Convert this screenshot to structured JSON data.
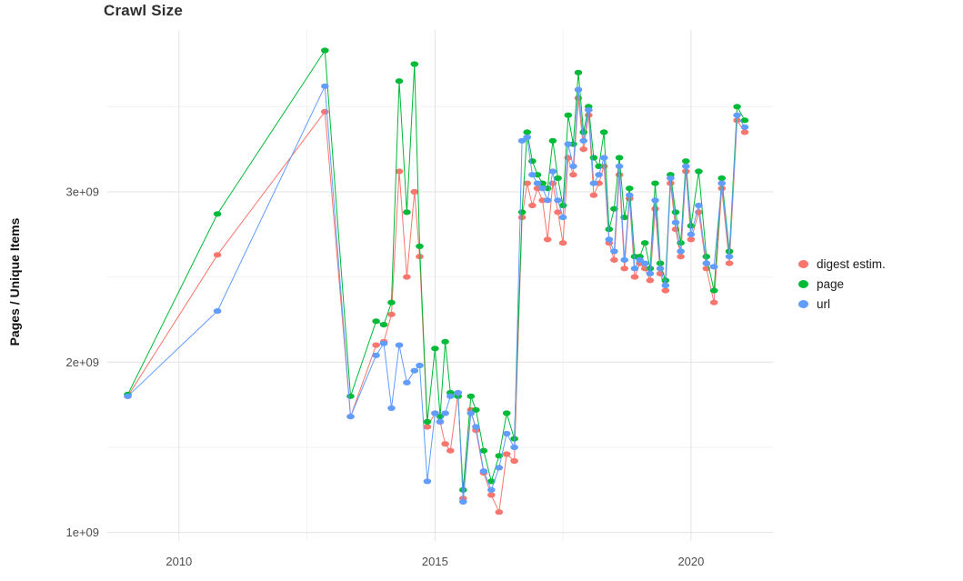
{
  "chart_data": {
    "type": "scatter",
    "style": "points-with-lines",
    "title": "Crawl Size",
    "xlabel": "",
    "ylabel": "Pages / Unique Items",
    "value_unit": "1e+09 pages (values below are in billions)",
    "xlim": [
      2008.6,
      2021.6
    ],
    "ylim": [
      0.95,
      3.95
    ],
    "x_ticks": [
      2010,
      2015,
      2020
    ],
    "x_tick_labels": [
      "2010",
      "2015",
      "2020"
    ],
    "x_minor": [
      2012.5,
      2017.5
    ],
    "y_ticks": [
      1,
      2,
      3
    ],
    "y_tick_labels": [
      "1e+09",
      "2e+09",
      "3e+09"
    ],
    "y_minor": [
      1.5,
      2.5,
      3.5
    ],
    "grid": true,
    "grid_major_color": "#e3e3e3",
    "grid_minor_color": "#f2f2f2",
    "panel_background": "#ffffff",
    "legend_position": "right",
    "x": [
      2009.0,
      2010.75,
      2012.85,
      2013.35,
      2013.85,
      2014.0,
      2014.15,
      2014.3,
      2014.45,
      2014.6,
      2014.7,
      2014.85,
      2015.0,
      2015.1,
      2015.2,
      2015.3,
      2015.45,
      2015.55,
      2015.7,
      2015.8,
      2015.95,
      2016.1,
      2016.25,
      2016.4,
      2016.55,
      2016.7,
      2016.8,
      2016.9,
      2017.0,
      2017.1,
      2017.2,
      2017.3,
      2017.4,
      2017.5,
      2017.6,
      2017.7,
      2017.8,
      2017.9,
      2018.0,
      2018.1,
      2018.2,
      2018.3,
      2018.4,
      2018.5,
      2018.6,
      2018.7,
      2018.8,
      2018.9,
      2019.0,
      2019.1,
      2019.2,
      2019.3,
      2019.4,
      2019.5,
      2019.6,
      2019.7,
      2019.8,
      2019.9,
      2020.0,
      2020.15,
      2020.3,
      2020.45,
      2020.6,
      2020.75,
      2020.9,
      2021.05
    ],
    "series": [
      {
        "id": "digest",
        "name": "digest estim.",
        "color": "#F8766D",
        "values": [
          1.8,
          2.63,
          3.47,
          1.68,
          2.1,
          2.12,
          2.28,
          3.12,
          2.5,
          3.0,
          2.62,
          1.62,
          1.7,
          1.65,
          1.52,
          1.48,
          1.82,
          1.2,
          1.72,
          1.6,
          1.35,
          1.22,
          1.12,
          1.46,
          1.42,
          2.85,
          3.05,
          2.92,
          3.02,
          2.95,
          2.72,
          3.05,
          2.88,
          2.7,
          3.2,
          3.1,
          3.55,
          3.25,
          3.45,
          2.98,
          3.05,
          3.15,
          2.7,
          2.6,
          3.1,
          2.55,
          2.96,
          2.5,
          2.58,
          2.55,
          2.48,
          2.9,
          2.52,
          2.42,
          3.05,
          2.78,
          2.62,
          3.12,
          2.72,
          2.88,
          2.55,
          2.35,
          3.02,
          2.58,
          3.42,
          3.35
        ]
      },
      {
        "id": "page",
        "name": "page",
        "color": "#00BA38",
        "values": [
          1.81,
          2.87,
          3.83,
          1.8,
          2.24,
          2.22,
          2.35,
          3.65,
          2.88,
          3.75,
          2.68,
          1.65,
          2.08,
          1.68,
          2.12,
          1.82,
          1.8,
          1.25,
          1.8,
          1.72,
          1.48,
          1.3,
          1.45,
          1.7,
          1.55,
          2.88,
          3.35,
          3.18,
          3.1,
          3.05,
          3.02,
          3.3,
          3.08,
          2.92,
          3.45,
          3.28,
          3.7,
          3.35,
          3.5,
          3.2,
          3.15,
          3.35,
          2.78,
          2.9,
          3.2,
          2.85,
          3.02,
          2.62,
          2.62,
          2.7,
          2.55,
          3.05,
          2.58,
          2.48,
          3.1,
          2.88,
          2.7,
          3.18,
          2.8,
          3.12,
          2.62,
          2.42,
          3.08,
          2.65,
          3.5,
          3.42
        ]
      },
      {
        "id": "url",
        "name": "url",
        "color": "#619CFF",
        "values": [
          1.8,
          2.3,
          3.62,
          1.68,
          2.04,
          2.11,
          1.73,
          2.1,
          1.88,
          1.95,
          1.98,
          1.3,
          1.7,
          1.65,
          1.7,
          1.8,
          1.82,
          1.18,
          1.7,
          1.62,
          1.36,
          1.25,
          1.38,
          1.58,
          1.5,
          3.3,
          3.32,
          3.1,
          3.05,
          3.02,
          2.95,
          3.12,
          2.95,
          2.85,
          3.28,
          3.15,
          3.6,
          3.3,
          3.48,
          3.05,
          3.1,
          3.2,
          2.72,
          2.65,
          3.15,
          2.6,
          2.98,
          2.55,
          2.6,
          2.58,
          2.52,
          2.95,
          2.55,
          2.45,
          3.08,
          2.82,
          2.65,
          3.15,
          2.75,
          2.92,
          2.58,
          2.56,
          3.05,
          2.62,
          3.45,
          3.38
        ]
      }
    ]
  }
}
